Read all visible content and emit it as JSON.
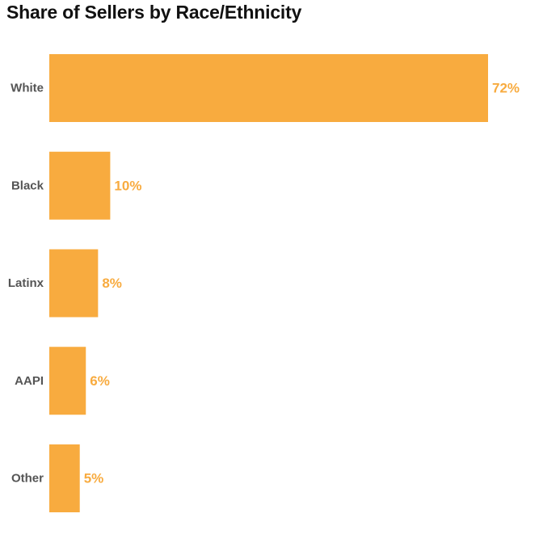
{
  "title": "Share of Sellers by Race/Ethnicity",
  "colors": {
    "bar": "#f8ab3f",
    "value_label": "#f8ab3f",
    "category_label": "#555555",
    "title": "#111111"
  },
  "chart_data": {
    "type": "bar",
    "orientation": "horizontal",
    "title": "Share of Sellers by Race/Ethnicity",
    "categories": [
      "White",
      "Black",
      "Latinx",
      "AAPI",
      "Other"
    ],
    "values": [
      72,
      10,
      8,
      6,
      5
    ],
    "value_labels": [
      "72%",
      "10%",
      "8%",
      "6%",
      "5%"
    ],
    "xlabel": "",
    "ylabel": "",
    "xlim": [
      0,
      72
    ],
    "grid": false,
    "legend": "none"
  }
}
